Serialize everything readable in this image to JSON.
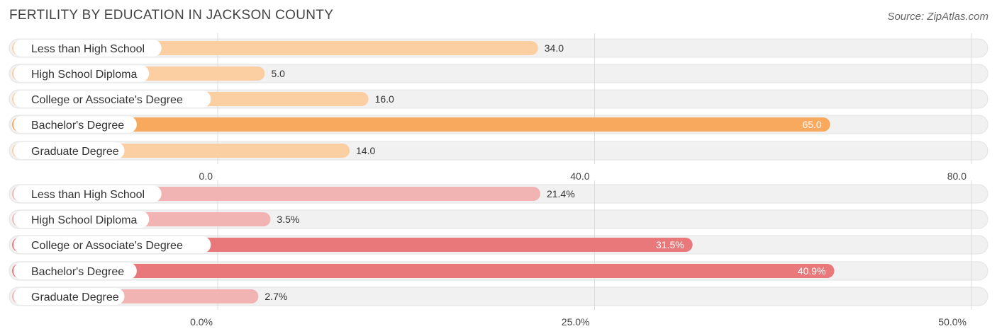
{
  "title": "FERTILITY BY EDUCATION IN JACKSON COUNTY",
  "source": "Source: ZipAtlas.com",
  "colors": {
    "track": "#f1f1f1",
    "track_border": "#e2e2e2",
    "grid": "#dddddd",
    "chart1_light": "#fbcfa2",
    "chart1_strong": "#f8a95d",
    "chart2_light": "#f2b3b3",
    "chart2_strong": "#e8787a",
    "label_text": "#333333",
    "tick_text": "#444444"
  },
  "chart_data": [
    {
      "type": "bar",
      "orientation": "horizontal",
      "categories": [
        "Less than High School",
        "High School Diploma",
        "College or Associate's Degree",
        "Bachelor's Degree",
        "Graduate Degree"
      ],
      "values": [
        34.0,
        5.0,
        16.0,
        65.0,
        14.0
      ],
      "value_labels": [
        "34.0",
        "5.0",
        "16.0",
        "65.0",
        "14.0"
      ],
      "xlim": [
        0,
        80
      ],
      "ticks": [
        0,
        40,
        80
      ],
      "tick_labels": [
        "0.0",
        "40.0",
        "80.0"
      ],
      "grid": true
    },
    {
      "type": "bar",
      "orientation": "horizontal",
      "categories": [
        "Less than High School",
        "High School Diploma",
        "College or Associate's Degree",
        "Bachelor's Degree",
        "Graduate Degree"
      ],
      "values": [
        21.4,
        3.5,
        31.5,
        40.9,
        2.7
      ],
      "value_labels": [
        "21.4%",
        "3.5%",
        "31.5%",
        "40.9%",
        "2.7%"
      ],
      "xlim": [
        0,
        50
      ],
      "ticks": [
        0,
        25,
        50
      ],
      "tick_labels": [
        "0.0%",
        "25.0%",
        "50.0%"
      ],
      "grid": true
    }
  ]
}
